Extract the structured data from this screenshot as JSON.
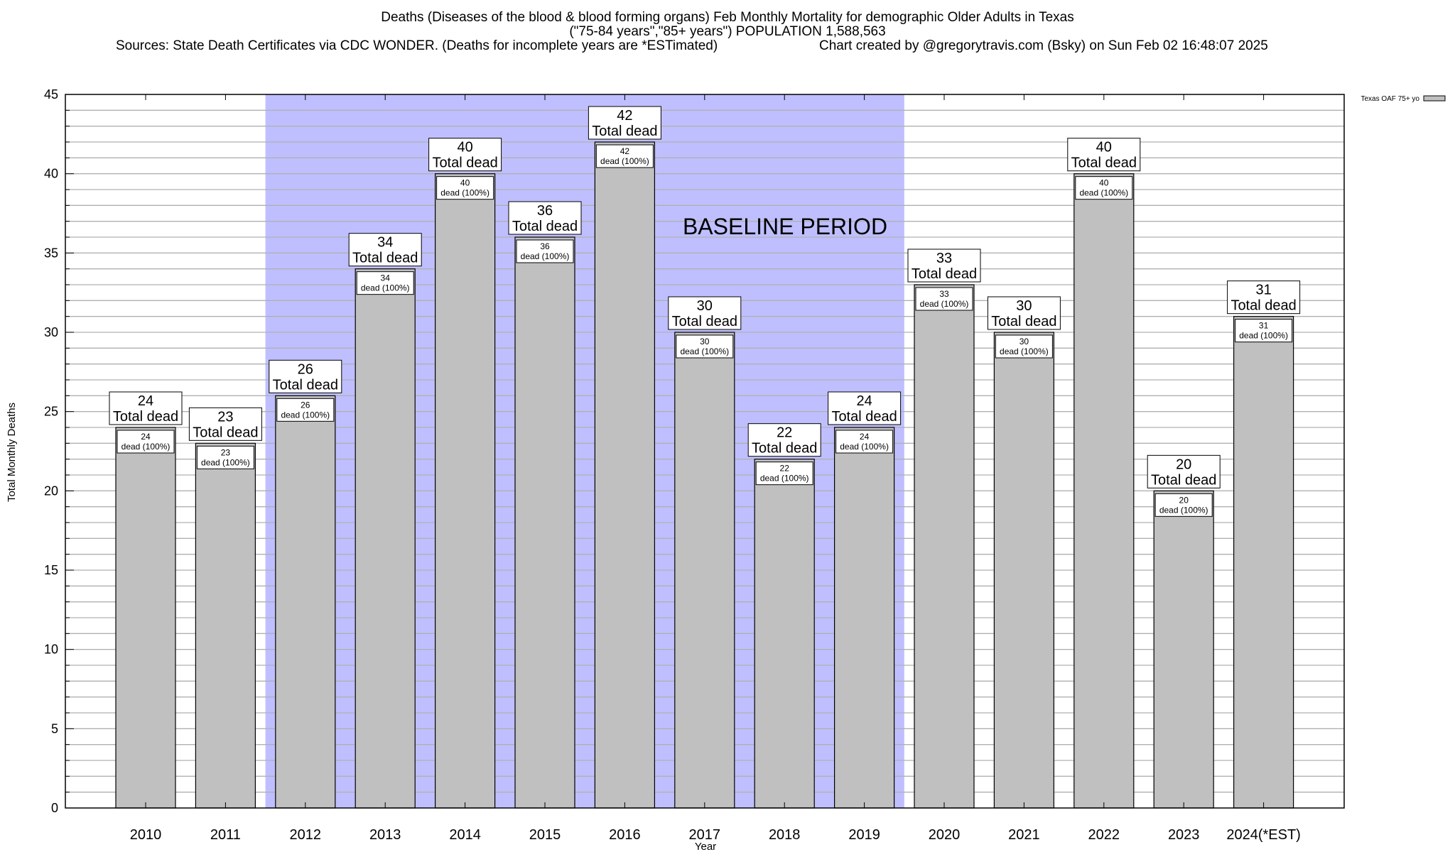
{
  "chart_data": {
    "type": "bar",
    "title_lines": [
      "Deaths (Diseases of the blood & blood forming organs) Feb Monthly Mortality for demographic Older Adults in Texas",
      "(\"75-84 years\",\"85+ years\") POPULATION 1,588,563"
    ],
    "sources": "Sources: State Death Certificates via CDC WONDER. (Deaths for incomplete years are *ESTimated)",
    "credit": "Chart created by @gregorytravis.com (Bsky) on Sun Feb 02 16:48:07 2025",
    "xlabel": "Year",
    "ylabel": "Total Monthly Deaths",
    "ylim": [
      0,
      45
    ],
    "yticks": [
      0,
      5,
      10,
      15,
      20,
      25,
      30,
      35,
      40,
      45
    ],
    "grid": true,
    "categories": [
      "2010",
      "2011",
      "2012",
      "2013",
      "2014",
      "2015",
      "2016",
      "2017",
      "2018",
      "2019",
      "2020",
      "2021",
      "2022",
      "2023",
      "2024(*EST)"
    ],
    "series": [
      {
        "name": "Texas OAF 75+ yo",
        "color": "#c0c0c0",
        "values": [
          24,
          23,
          26,
          34,
          40,
          36,
          42,
          30,
          22,
          24,
          33,
          30,
          40,
          20,
          31
        ]
      }
    ],
    "top_label_suffix": "Total dead",
    "inner_label_suffix": "dead (100%)",
    "baseline": {
      "label": "BASELINE PERIOD",
      "from": "2012",
      "to": "2019",
      "color": "#bfbfff"
    },
    "legend_position": "top-right"
  }
}
